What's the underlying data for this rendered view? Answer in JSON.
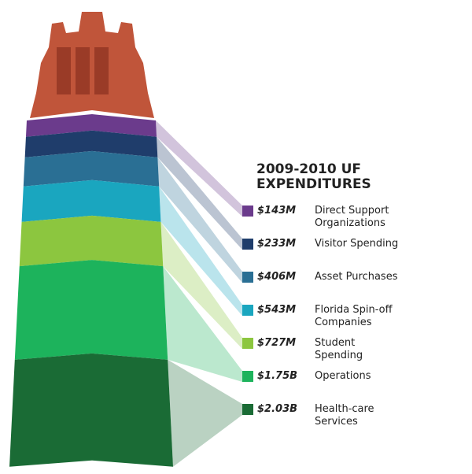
{
  "chart_data": {
    "type": "tower",
    "title": "2009-2010 UF EXPENDITURES",
    "categories": [
      "Direct Support Organizations",
      "Visitor Spending",
      "Asset Purchases",
      "Florida Spin-off Companies",
      "Student Spending",
      "Operations",
      "Health-care Services"
    ],
    "values": [
      143,
      233,
      406,
      543,
      727,
      1750,
      2030
    ],
    "value_labels": [
      "$143M",
      "$233M",
      "$406M",
      "$543M",
      "$727M",
      "$1.75B",
      "$2.03B"
    ],
    "colors": [
      "#6b3b8c",
      "#1f3d6b",
      "#2a6f94",
      "#1aa6bf",
      "#8cc63f",
      "#1db35c",
      "#1a6b35"
    ]
  }
}
